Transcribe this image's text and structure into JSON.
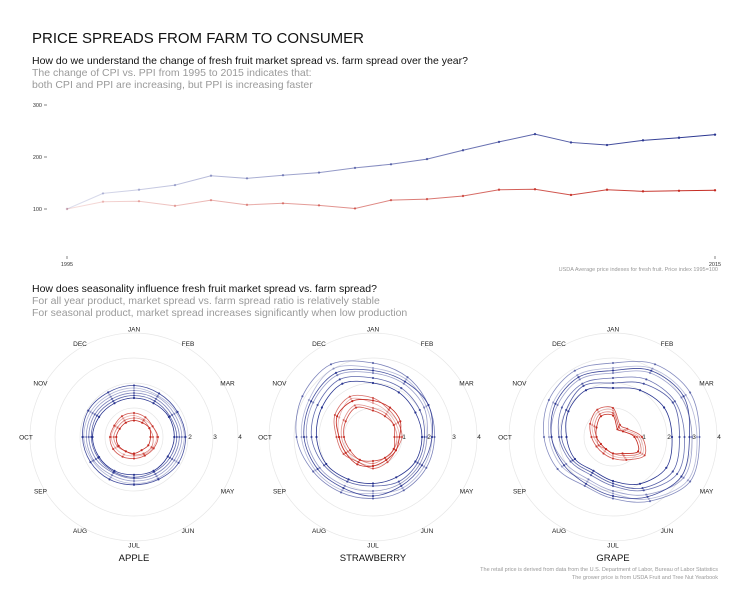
{
  "title": "PRICE SPREADS FROM FARM TO CONSUMER",
  "section1": {
    "question": "How do we understand the change of fresh fruit market spread vs. farm spread over the year?",
    "line1": "The change of CPI vs. PPI from 1995 to 2015 indicates that:",
    "line2": "both CPI and PPI are increasing, but PPI is increasing faster"
  },
  "section2": {
    "question": "How does seasonality influence fresh fruit market spread vs. farm spread?",
    "line1": "For all year product, market spread vs. farm spread ratio is relatively stable",
    "line2": "For seasonal product, market spread increases significantly when low production"
  },
  "colors": {
    "blue": "#27338f",
    "red": "#c4281f",
    "grid": "#e6e6e6"
  },
  "chart_data": [
    {
      "type": "line",
      "x_range": [
        1995,
        2015
      ],
      "x_tick_labels": [
        "1995",
        "2015"
      ],
      "y_ticks": [
        100,
        200,
        300
      ],
      "y_tick_labels": [
        "100",
        "200",
        "300"
      ],
      "ylim": [
        100,
        300
      ],
      "note": "USDA Average price indexes for fresh fruit. Price index 1995=100",
      "series": [
        {
          "color": "#27338f",
          "values": [
            100,
            130,
            137,
            146,
            164,
            159,
            165,
            170,
            179,
            186,
            196,
            213,
            229,
            244,
            228,
            223,
            232,
            237,
            243
          ]
        },
        {
          "color": "#c4281f",
          "values": [
            100,
            114,
            115,
            106,
            117,
            108,
            111,
            107,
            101,
            117,
            119,
            125,
            137,
            138,
            127,
            137,
            134,
            135,
            136
          ]
        }
      ]
    },
    {
      "type": "radar",
      "title": "APPLE",
      "months": [
        "JAN",
        "FEB",
        "MAR",
        "",
        "MAY",
        "JUN",
        "JUL",
        "AUG",
        "SEP",
        "OCT",
        "NOV",
        "DEC"
      ],
      "ring_labels": [
        "2",
        "3",
        "4"
      ],
      "blue_series": [
        [
          1.8,
          1.75,
          1.8,
          1.85,
          1.8,
          1.75,
          1.7,
          1.7,
          1.75,
          1.85,
          1.85,
          1.8
        ],
        [
          1.7,
          1.7,
          1.7,
          1.75,
          1.7,
          1.65,
          1.6,
          1.6,
          1.7,
          1.75,
          1.75,
          1.7
        ],
        [
          1.6,
          1.6,
          1.6,
          1.65,
          1.6,
          1.55,
          1.5,
          1.5,
          1.6,
          1.65,
          1.65,
          1.6
        ],
        [
          1.5,
          1.5,
          1.5,
          1.55,
          1.5,
          1.45,
          1.45,
          1.45,
          1.5,
          1.55,
          1.55,
          1.5
        ],
        [
          1.9,
          1.85,
          1.85,
          1.9,
          1.9,
          1.8,
          1.75,
          1.8,
          1.85,
          1.9,
          1.95,
          1.9
        ],
        [
          1.4,
          1.4,
          1.45,
          1.45,
          1.4,
          1.4,
          1.35,
          1.4,
          1.45,
          1.5,
          1.45,
          1.4
        ]
      ],
      "red_series": [
        [
          0.7,
          0.65,
          0.7,
          0.75,
          0.7,
          0.65,
          0.6,
          0.65,
          0.7,
          0.75,
          0.7,
          0.7
        ],
        [
          0.6,
          0.6,
          0.55,
          0.6,
          0.65,
          0.6,
          0.55,
          0.5,
          0.6,
          0.65,
          0.6,
          0.6
        ],
        [
          0.8,
          0.75,
          0.7,
          0.8,
          0.75,
          0.7,
          0.7,
          0.75,
          0.8,
          0.8,
          0.75,
          0.8
        ],
        [
          0.5,
          0.5,
          0.55,
          0.5,
          0.5,
          0.45,
          0.5,
          0.5,
          0.55,
          0.55,
          0.5,
          0.5
        ]
      ]
    },
    {
      "type": "radar",
      "title": "STRAWBERRY",
      "months": [
        "JAN",
        "FEB",
        "MAR",
        "",
        "MAY",
        "JUN",
        "JUL",
        "AUG",
        "SEP",
        "OCT",
        "NOV",
        "DEC"
      ],
      "ring_labels": [
        "1",
        "2",
        "3",
        "4"
      ],
      "blue_series": [
        [
          2.6,
          2.5,
          2.3,
          2.2,
          2.2,
          2.2,
          2.1,
          2.3,
          2.5,
          2.7,
          2.8,
          3.0
        ],
        [
          2.4,
          2.3,
          2.2,
          2.0,
          2.0,
          2.0,
          2.0,
          2.1,
          2.3,
          2.5,
          2.6,
          2.7
        ],
        [
          2.8,
          2.6,
          2.4,
          2.3,
          2.3,
          2.3,
          2.3,
          2.4,
          2.6,
          2.9,
          3.1,
          3.2
        ],
        [
          2.2,
          2.1,
          2.0,
          1.9,
          1.9,
          1.9,
          1.8,
          1.9,
          2.1,
          2.3,
          2.4,
          2.5
        ],
        [
          2.5,
          2.4,
          2.4,
          2.2,
          2.1,
          2.1,
          2.2,
          2.2,
          2.4,
          2.6,
          2.7,
          2.8
        ],
        [
          2.0,
          1.9,
          1.8,
          1.8,
          1.8,
          1.7,
          1.7,
          1.8,
          2.0,
          2.1,
          2.2,
          2.3
        ]
      ],
      "red_series": [
        [
          1.2,
          1.0,
          0.9,
          0.9,
          0.8,
          0.9,
          1.0,
          1.0,
          1.1,
          1.2,
          1.4,
          1.6
        ],
        [
          1.0,
          0.9,
          0.8,
          0.8,
          0.8,
          0.8,
          0.9,
          0.9,
          1.0,
          1.1,
          1.2,
          1.3
        ],
        [
          1.4,
          1.1,
          1.0,
          1.0,
          0.9,
          1.0,
          1.1,
          1.0,
          1.2,
          1.3,
          1.6,
          1.7
        ],
        [
          0.9,
          0.8,
          0.8,
          0.7,
          0.8,
          0.8,
          0.8,
          0.9,
          0.9,
          1.0,
          1.1,
          1.2
        ],
        [
          1.3,
          1.2,
          1.1,
          0.9,
          0.9,
          0.9,
          1.0,
          1.1,
          1.1,
          1.2,
          1.5,
          1.5
        ]
      ]
    },
    {
      "type": "radar",
      "title": "GRAPE",
      "months": [
        "JAN",
        "FEB",
        "MAR",
        "",
        "MAY",
        "JUN",
        "JUL",
        "AUG",
        "SEP",
        "OCT",
        "NOV",
        "DEC"
      ],
      "ring_labels": [
        "1",
        "2",
        "3",
        "4"
      ],
      "blue_series": [
        [
          2.6,
          3.0,
          3.2,
          3.2,
          3.3,
          2.7,
          2.1,
          1.9,
          2.2,
          2.4,
          2.6,
          2.7
        ],
        [
          2.4,
          2.8,
          3.0,
          3.0,
          3.1,
          2.5,
          2.0,
          1.8,
          2.0,
          2.3,
          2.4,
          2.5
        ],
        [
          2.8,
          3.2,
          3.4,
          3.3,
          3.4,
          2.8,
          2.3,
          2.1,
          2.4,
          2.6,
          2.8,
          2.9
        ],
        [
          2.2,
          2.5,
          2.7,
          2.7,
          2.8,
          2.3,
          1.8,
          1.6,
          1.8,
          2.0,
          2.2,
          2.3
        ],
        [
          2.0,
          2.3,
          2.6,
          2.5,
          2.6,
          2.2,
          1.7,
          1.5,
          1.7,
          1.9,
          2.0,
          2.2
        ],
        [
          2.5,
          2.9,
          3.1,
          2.9,
          3.0,
          2.6,
          2.2,
          2.0,
          2.1,
          2.3,
          2.5,
          2.6
        ],
        [
          1.8,
          2.0,
          2.2,
          2.2,
          2.3,
          2.0,
          1.6,
          1.4,
          1.6,
          1.7,
          1.9,
          2.0
        ]
      ],
      "red_series": [
        [
          0.9,
          0.3,
          0.4,
          0.9,
          1.2,
          0.8,
          0.6,
          0.5,
          0.5,
          0.6,
          0.8,
          1.0
        ],
        [
          0.8,
          0.3,
          0.3,
          0.8,
          1.1,
          0.7,
          0.5,
          0.4,
          0.5,
          0.5,
          0.7,
          0.9
        ],
        [
          1.0,
          0.4,
          0.5,
          1.0,
          1.3,
          0.9,
          0.7,
          0.6,
          0.6,
          0.7,
          0.9,
          1.1
        ],
        [
          0.7,
          0.2,
          0.3,
          0.7,
          1.0,
          0.6,
          0.5,
          0.4,
          0.4,
          0.5,
          0.6,
          0.8
        ]
      ]
    }
  ],
  "footer": {
    "line1": "The retail price is derived from data from the U.S. Department of Labor, Bureau of Labor Statistics",
    "line2": "The grower price is from USDA Fruit and Tree Nut Yearbook"
  }
}
